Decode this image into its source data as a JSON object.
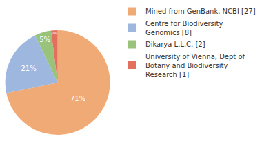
{
  "chart_data": {
    "type": "pie",
    "categories": [
      "Mined from GenBank, NCBI [27]",
      "Centre for Biodiversity Genomics [8]",
      "Dikarya L.L.C. [2]",
      "University of Vienna, Dept of Botany and Biodiversity Research [1]"
    ],
    "values": [
      71,
      21,
      5,
      2
    ],
    "value_labels": [
      "71%",
      "21%",
      "5%",
      "2%"
    ],
    "colors": [
      "#f0aa76",
      "#9db7df",
      "#99c27a",
      "#e2705f"
    ],
    "data_labels": true,
    "legend": "right"
  }
}
